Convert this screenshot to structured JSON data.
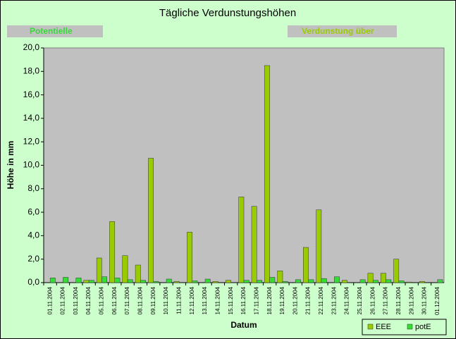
{
  "chart_data": {
    "type": "bar",
    "title": "Tägliche Verdunstungshöhen",
    "banners": [
      "Potentielle",
      "Verdunstung über"
    ],
    "y_label": "Höhe in mm",
    "x_label": "Datum",
    "categories": [
      "01.11.2004",
      "02.11.2004",
      "03.11.2004",
      "04.11.2004",
      "05.11.2004",
      "06.11.2004",
      "07.11.2004",
      "08.11.2004",
      "09.11.2004",
      "10.11.2004",
      "11.11.2004",
      "12.11.2004",
      "13.11.2004",
      "14.11.2004",
      "15.11.2004",
      "16.11.2004",
      "17.11.2004",
      "18.11.2004",
      "19.11.2004",
      "20.11.2004",
      "21.11.2004",
      "22.11.2004",
      "23.11.2004",
      "24.11.2004",
      "25.11.2004",
      "26.11.2004",
      "27.11.2004",
      "28.11.2004",
      "29.11.2004",
      "30.11.2004",
      "01.12.2004"
    ],
    "series": [
      {
        "name": "EEE",
        "color": "#99cc00",
        "values": [
          0,
          0,
          0,
          0.2,
          2.1,
          5.2,
          2.3,
          1.5,
          10.6,
          0,
          0.1,
          4.3,
          0,
          0.1,
          0.2,
          7.3,
          6.5,
          18.5,
          1.0,
          0,
          3.0,
          6.2,
          0,
          0.2,
          0,
          0.8,
          0.8,
          2.0,
          0.05,
          0.1,
          0
        ]
      },
      {
        "name": "potE",
        "color": "#33dd33",
        "values": [
          0.4,
          0.45,
          0.4,
          0.2,
          0.5,
          0.4,
          0.25,
          0.2,
          0.1,
          0.3,
          0,
          0.15,
          0.3,
          0,
          0,
          0.2,
          0.2,
          0.45,
          0.1,
          0.25,
          0.25,
          0.35,
          0.5,
          0,
          0.25,
          0.2,
          0.25,
          0.15,
          0,
          0,
          0.25
        ]
      }
    ],
    "ylim": [
      0,
      20
    ],
    "yticks": [
      {
        "value": 0,
        "label": "0,0"
      },
      {
        "value": 2,
        "label": "2,0"
      },
      {
        "value": 4,
        "label": "4,0"
      },
      {
        "value": 6,
        "label": "6,0"
      },
      {
        "value": 8,
        "label": "8,0"
      },
      {
        "value": 10,
        "label": "10,0"
      },
      {
        "value": 12,
        "label": "12,0"
      },
      {
        "value": 14,
        "label": "14,0"
      },
      {
        "value": 16,
        "label": "16,0"
      },
      {
        "value": 18,
        "label": "18,0"
      },
      {
        "value": 20,
        "label": "20,0"
      }
    ],
    "legend": "bottom-right"
  }
}
